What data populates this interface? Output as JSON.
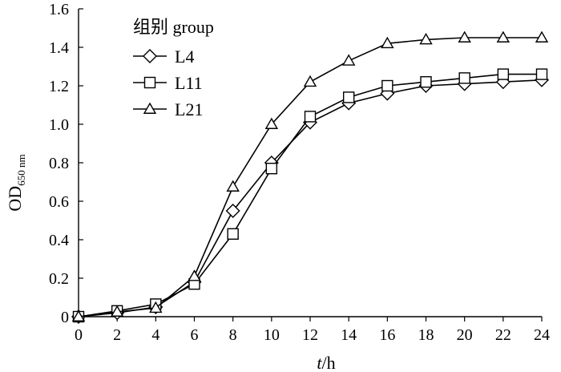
{
  "chart_data": {
    "type": "line",
    "x": [
      0,
      2,
      4,
      6,
      8,
      10,
      12,
      14,
      16,
      18,
      20,
      22,
      24
    ],
    "xlabel_italic": "t",
    "xlabel_rest": "/h",
    "ylabel_main": "OD",
    "ylabel_sub": "650 nm",
    "xlim": [
      0,
      24
    ],
    "ylim": [
      0,
      1.6
    ],
    "xticks": [
      "0",
      "2",
      "4",
      "6",
      "8",
      "10",
      "12",
      "14",
      "16",
      "18",
      "20",
      "22",
      "24"
    ],
    "yticks": [
      "0",
      "0.2",
      "0.4",
      "0.6",
      "0.8",
      "1.0",
      "1.2",
      "1.4",
      "1.6"
    ],
    "grid": false,
    "legend": {
      "title": "组别 group",
      "position": "top-left"
    },
    "series": [
      {
        "name": "L4",
        "marker": "diamond",
        "values": [
          0.0,
          0.02,
          0.05,
          0.18,
          0.55,
          0.8,
          1.01,
          1.11,
          1.16,
          1.2,
          1.21,
          1.22,
          1.23
        ]
      },
      {
        "name": "L11",
        "marker": "square",
        "values": [
          0.0,
          0.03,
          0.065,
          0.17,
          0.43,
          0.77,
          1.04,
          1.14,
          1.2,
          1.22,
          1.24,
          1.26,
          1.26
        ]
      },
      {
        "name": "L21",
        "marker": "triangle",
        "values": [
          0.0,
          0.025,
          0.045,
          0.21,
          0.675,
          1.0,
          1.22,
          1.33,
          1.42,
          1.44,
          1.45,
          1.45,
          1.45
        ]
      }
    ]
  }
}
